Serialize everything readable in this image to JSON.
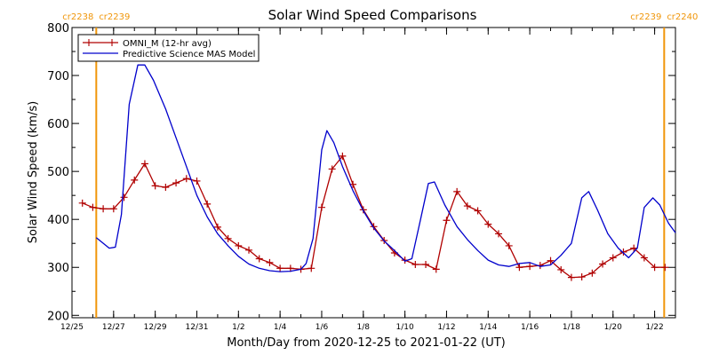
{
  "chart_data": {
    "type": "line",
    "title": "Solar Wind Speed Comparisons",
    "xlabel": "Month/Day from 2020-12-25 to 2021-01-22 (UT)",
    "ylabel": "Solar Wind Speed (km/s)",
    "xlim": [
      "2020-12-25",
      "2021-01-23"
    ],
    "ylim": [
      195,
      800
    ],
    "yticks": [
      200,
      300,
      400,
      500,
      600,
      700,
      800
    ],
    "xtick_labels": [
      "12/25",
      "12/27",
      "12/29",
      "12/31",
      "1/2",
      "1/4",
      "1/6",
      "1/8",
      "1/10",
      "1/12",
      "1/14",
      "1/16",
      "1/18",
      "1/20",
      "1/22"
    ],
    "xtick_dates": [
      "2020-12-25",
      "2020-12-27",
      "2020-12-29",
      "2020-12-31",
      "2021-01-02",
      "2021-01-04",
      "2021-01-06",
      "2021-01-08",
      "2021-01-10",
      "2021-01-12",
      "2021-01-14",
      "2021-01-16",
      "2021-01-18",
      "2021-01-20",
      "2021-01-22"
    ],
    "legend_position": "top-left",
    "carrington_markers": [
      {
        "date": "2020-12-26 04:00",
        "label_left": "cr2238",
        "label_right": "cr2239"
      },
      {
        "date": "2021-01-22 11:00",
        "label_left": "cr2239",
        "label_right": "cr2240"
      }
    ],
    "series": [
      {
        "name": "OMNI_M (12-hr avg)",
        "color": "#b00000",
        "marker": "+",
        "points": [
          [
            "2020-12-25 12:00",
            434
          ],
          [
            "2020-12-26 00:00",
            425
          ],
          [
            "2020-12-26 12:00",
            422
          ],
          [
            "2020-12-27 00:00",
            422
          ],
          [
            "2020-12-27 12:00",
            446
          ],
          [
            "2020-12-28 00:00",
            482
          ],
          [
            "2020-12-28 12:00",
            516
          ],
          [
            "2020-12-29 00:00",
            470
          ],
          [
            "2020-12-29 12:00",
            467
          ],
          [
            "2020-12-30 00:00",
            476
          ],
          [
            "2020-12-30 12:00",
            485
          ],
          [
            "2020-12-31 00:00",
            480
          ],
          [
            "2020-12-31 12:00",
            432
          ],
          [
            "2021-01-01 00:00",
            384
          ],
          [
            "2021-01-01 12:00",
            360
          ],
          [
            "2021-01-02 00:00",
            345
          ],
          [
            "2021-01-02 12:00",
            336
          ],
          [
            "2021-01-03 00:00",
            318
          ],
          [
            "2021-01-03 12:00",
            310
          ],
          [
            "2021-01-04 00:00",
            298
          ],
          [
            "2021-01-04 12:00",
            298
          ],
          [
            "2021-01-05 00:00",
            296
          ],
          [
            "2021-01-05 12:00",
            298
          ],
          [
            "2021-01-06 00:00",
            425
          ],
          [
            "2021-01-06 12:00",
            505
          ],
          [
            "2021-01-07 00:00",
            532
          ],
          [
            "2021-01-07 12:00",
            473
          ],
          [
            "2021-01-08 00:00",
            420
          ],
          [
            "2021-01-08 12:00",
            385
          ],
          [
            "2021-01-09 00:00",
            356
          ],
          [
            "2021-01-09 12:00",
            330
          ],
          [
            "2021-01-10 00:00",
            315
          ],
          [
            "2021-01-10 12:00",
            306
          ],
          [
            "2021-01-11 00:00",
            306
          ],
          [
            "2021-01-11 12:00",
            296
          ],
          [
            "2021-01-12 00:00",
            398
          ],
          [
            "2021-01-12 12:00",
            458
          ],
          [
            "2021-01-13 00:00",
            428
          ],
          [
            "2021-01-13 12:00",
            418
          ],
          [
            "2021-01-14 00:00",
            390
          ],
          [
            "2021-01-14 12:00",
            370
          ],
          [
            "2021-01-15 00:00",
            345
          ],
          [
            "2021-01-15 12:00",
            300
          ],
          [
            "2021-01-16 00:00",
            302
          ],
          [
            "2021-01-16 12:00",
            304
          ],
          [
            "2021-01-17 00:00",
            314
          ],
          [
            "2021-01-17 12:00",
            295
          ],
          [
            "2021-01-18 00:00",
            279
          ],
          [
            "2021-01-18 12:00",
            280
          ],
          [
            "2021-01-19 00:00",
            288
          ],
          [
            "2021-01-19 12:00",
            307
          ],
          [
            "2021-01-20 00:00",
            320
          ],
          [
            "2021-01-20 12:00",
            332
          ],
          [
            "2021-01-21 00:00",
            340
          ],
          [
            "2021-01-21 12:00",
            320
          ],
          [
            "2021-01-22 00:00",
            300
          ],
          [
            "2021-01-22 12:00",
            300
          ]
        ]
      },
      {
        "name": "Predictive Science MAS Model",
        "color": "#0000cc",
        "points": [
          [
            "2020-12-26 04:00",
            362
          ],
          [
            "2020-12-26 19:00",
            340
          ],
          [
            "2020-12-27 02:00",
            342
          ],
          [
            "2020-12-27 09:00",
            410
          ],
          [
            "2020-12-27 18:00",
            640
          ],
          [
            "2020-12-28 04:00",
            722
          ],
          [
            "2020-12-28 12:00",
            722
          ],
          [
            "2020-12-28 22:00",
            690
          ],
          [
            "2020-12-29 12:00",
            630
          ],
          [
            "2020-12-30 00:00",
            570
          ],
          [
            "2020-12-30 12:00",
            510
          ],
          [
            "2020-12-31 00:00",
            450
          ],
          [
            "2020-12-31 12:00",
            405
          ],
          [
            "2021-01-01 00:00",
            370
          ],
          [
            "2021-01-01 12:00",
            345
          ],
          [
            "2021-01-02 00:00",
            323
          ],
          [
            "2021-01-02 12:00",
            307
          ],
          [
            "2021-01-03 00:00",
            298
          ],
          [
            "2021-01-03 12:00",
            293
          ],
          [
            "2021-01-04 00:00",
            291
          ],
          [
            "2021-01-04 12:00",
            292
          ],
          [
            "2021-01-05 00:00",
            296
          ],
          [
            "2021-01-05 06:00",
            308
          ],
          [
            "2021-01-05 14:00",
            360
          ],
          [
            "2021-01-06 00:00",
            545
          ],
          [
            "2021-01-06 06:00",
            585
          ],
          [
            "2021-01-06 14:00",
            560
          ],
          [
            "2021-01-07 00:00",
            510
          ],
          [
            "2021-01-07 12:00",
            460
          ],
          [
            "2021-01-08 00:00",
            418
          ],
          [
            "2021-01-08 12:00",
            382
          ],
          [
            "2021-01-09 00:00",
            355
          ],
          [
            "2021-01-09 12:00",
            335
          ],
          [
            "2021-01-10 00:00",
            313
          ],
          [
            "2021-01-10 08:00",
            318
          ],
          [
            "2021-01-10 18:00",
            400
          ],
          [
            "2021-01-11 03:00",
            475
          ],
          [
            "2021-01-11 10:00",
            478
          ],
          [
            "2021-01-11 22:00",
            430
          ],
          [
            "2021-01-12 12:00",
            385
          ],
          [
            "2021-01-13 00:00",
            358
          ],
          [
            "2021-01-13 12:00",
            335
          ],
          [
            "2021-01-14 00:00",
            315
          ],
          [
            "2021-01-14 12:00",
            305
          ],
          [
            "2021-01-15 00:00",
            302
          ],
          [
            "2021-01-15 12:00",
            308
          ],
          [
            "2021-01-16 00:00",
            310
          ],
          [
            "2021-01-16 12:00",
            302
          ],
          [
            "2021-01-17 00:00",
            305
          ],
          [
            "2021-01-17 12:00",
            325
          ],
          [
            "2021-01-18 00:00",
            350
          ],
          [
            "2021-01-18 12:00",
            445
          ],
          [
            "2021-01-18 20:00",
            458
          ],
          [
            "2021-01-19 06:00",
            420
          ],
          [
            "2021-01-19 18:00",
            370
          ],
          [
            "2021-01-20 06:00",
            340
          ],
          [
            "2021-01-20 18:00",
            320
          ],
          [
            "2021-01-21 04:00",
            340
          ],
          [
            "2021-01-21 12:00",
            425
          ],
          [
            "2021-01-21 22:00",
            445
          ],
          [
            "2021-01-22 06:00",
            430
          ],
          [
            "2021-01-22 16:00",
            392
          ],
          [
            "2021-01-23 00:00",
            372
          ]
        ]
      }
    ]
  }
}
